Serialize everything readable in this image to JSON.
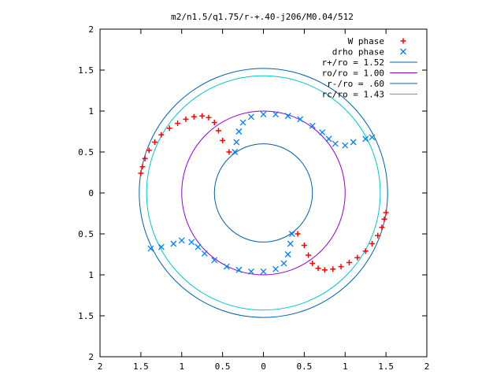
{
  "chart_data": {
    "type": "scatter",
    "title": "m2/n1.5/q1.75/r-+.40-j206/M0.04/512",
    "xlabel": "",
    "ylabel": "",
    "xlim": [
      -2,
      2
    ],
    "ylim": [
      -2,
      2
    ],
    "x_tick_values": [
      -2,
      -1.5,
      -1,
      -0.5,
      0,
      0.5,
      1,
      1.5,
      2
    ],
    "x_tick_labels": [
      "2",
      "1.5",
      "1",
      "0.5",
      "0",
      "0.5",
      "1",
      "1.5",
      "2"
    ],
    "y_tick_values": [
      2,
      1.5,
      1,
      0.5,
      0,
      -0.5,
      -1,
      -1.5,
      -2
    ],
    "y_tick_labels": [
      "2",
      "1.5",
      "1",
      "0.5",
      "0",
      "0.5",
      "1",
      "1.5",
      "2"
    ],
    "grid": false,
    "legend_position": "top-right",
    "circles": [
      {
        "name": "r+/ro = 1.52",
        "radius": 1.52,
        "color": "#0060ad"
      },
      {
        "name": "ro/ro = 1.00",
        "radius": 1.0,
        "color": "#9400d3"
      },
      {
        "name": "r-/ro = .60",
        "radius": 0.6,
        "color": "#0060ad"
      },
      {
        "name": "rc/ro = 1.43",
        "radius": 1.43,
        "color": "#00c8c8"
      }
    ],
    "series": [
      {
        "name": "W phase",
        "marker": "+",
        "color": "#ff0000",
        "points": [
          [
            -1.5,
            0.24
          ],
          [
            -1.48,
            0.32
          ],
          [
            -1.45,
            0.42
          ],
          [
            -1.4,
            0.52
          ],
          [
            -1.33,
            0.62
          ],
          [
            -1.25,
            0.71
          ],
          [
            -1.15,
            0.79
          ],
          [
            -1.05,
            0.85
          ],
          [
            -0.95,
            0.9
          ],
          [
            -0.85,
            0.93
          ],
          [
            -0.75,
            0.94
          ],
          [
            -0.67,
            0.92
          ],
          [
            -0.6,
            0.86
          ],
          [
            -0.55,
            0.76
          ],
          [
            -0.5,
            0.64
          ],
          [
            -0.42,
            0.5
          ],
          [
            1.5,
            -0.24
          ],
          [
            1.48,
            -0.32
          ],
          [
            1.45,
            -0.42
          ],
          [
            1.4,
            -0.52
          ],
          [
            1.33,
            -0.62
          ],
          [
            1.25,
            -0.71
          ],
          [
            1.15,
            -0.79
          ],
          [
            1.05,
            -0.85
          ],
          [
            0.95,
            -0.9
          ],
          [
            0.85,
            -0.93
          ],
          [
            0.75,
            -0.94
          ],
          [
            0.67,
            -0.92
          ],
          [
            0.6,
            -0.86
          ],
          [
            0.55,
            -0.76
          ],
          [
            0.5,
            -0.64
          ],
          [
            0.42,
            -0.5
          ]
        ]
      },
      {
        "name": "drho phase",
        "marker": "x",
        "color": "#0080ff",
        "points": [
          [
            -0.35,
            0.5
          ],
          [
            -0.33,
            0.62
          ],
          [
            -0.3,
            0.75
          ],
          [
            -0.25,
            0.86
          ],
          [
            -0.15,
            0.93
          ],
          [
            0.0,
            0.96
          ],
          [
            0.15,
            0.96
          ],
          [
            0.3,
            0.94
          ],
          [
            0.45,
            0.9
          ],
          [
            0.6,
            0.82
          ],
          [
            0.72,
            0.74
          ],
          [
            0.8,
            0.66
          ],
          [
            0.88,
            0.6
          ],
          [
            1.0,
            0.58
          ],
          [
            1.1,
            0.62
          ],
          [
            1.25,
            0.66
          ],
          [
            1.33,
            0.68
          ],
          [
            0.35,
            -0.5
          ],
          [
            0.33,
            -0.62
          ],
          [
            0.3,
            -0.75
          ],
          [
            0.25,
            -0.86
          ],
          [
            0.15,
            -0.93
          ],
          [
            0.0,
            -0.96
          ],
          [
            -0.15,
            -0.96
          ],
          [
            -0.3,
            -0.94
          ],
          [
            -0.45,
            -0.9
          ],
          [
            -0.6,
            -0.82
          ],
          [
            -0.72,
            -0.74
          ],
          [
            -0.8,
            -0.66
          ],
          [
            -0.88,
            -0.6
          ],
          [
            -1.0,
            -0.58
          ],
          [
            -1.1,
            -0.62
          ],
          [
            -1.25,
            -0.66
          ],
          [
            -1.38,
            -0.68
          ]
        ]
      }
    ]
  }
}
